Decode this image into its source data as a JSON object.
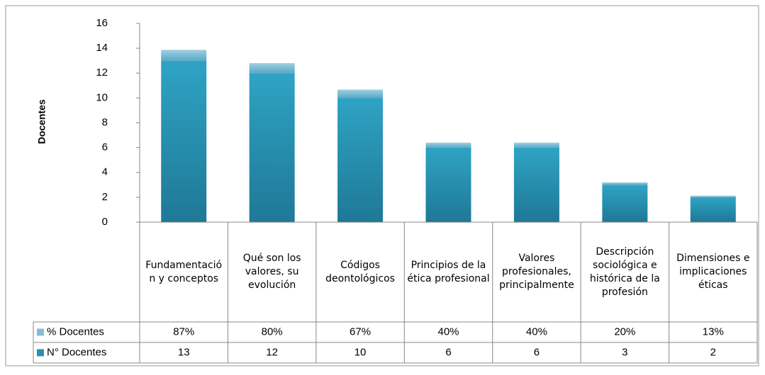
{
  "chart_data": {
    "type": "bar",
    "stacked": true,
    "y_label": "Docentes",
    "categories": [
      "Fundamentación y conceptos",
      "Qué son los valores, su evolución",
      "Códigos deontológicos",
      "Principios de la ética profesional",
      "Valores profesionales, principalmente",
      "Descripción sociológica e histórica de la profesión",
      "Dimensiones e implicaciones éticas"
    ],
    "series": [
      {
        "name": "% Docentes",
        "color": "#7fbfd6",
        "values": [
          0.87,
          0.8,
          0.67,
          0.4,
          0.4,
          0.2,
          0.13
        ],
        "value_labels": [
          "87%",
          "80%",
          "67%",
          "40%",
          "40%",
          "20%",
          "13%"
        ]
      },
      {
        "name": "N° Docentes",
        "color": "#2b8fb0",
        "values": [
          13,
          12,
          10,
          6,
          6,
          3,
          2
        ]
      }
    ],
    "ylim": [
      0,
      16
    ],
    "yticks": [
      0,
      2,
      4,
      6,
      8,
      10,
      12,
      14,
      16
    ],
    "grid": false
  }
}
